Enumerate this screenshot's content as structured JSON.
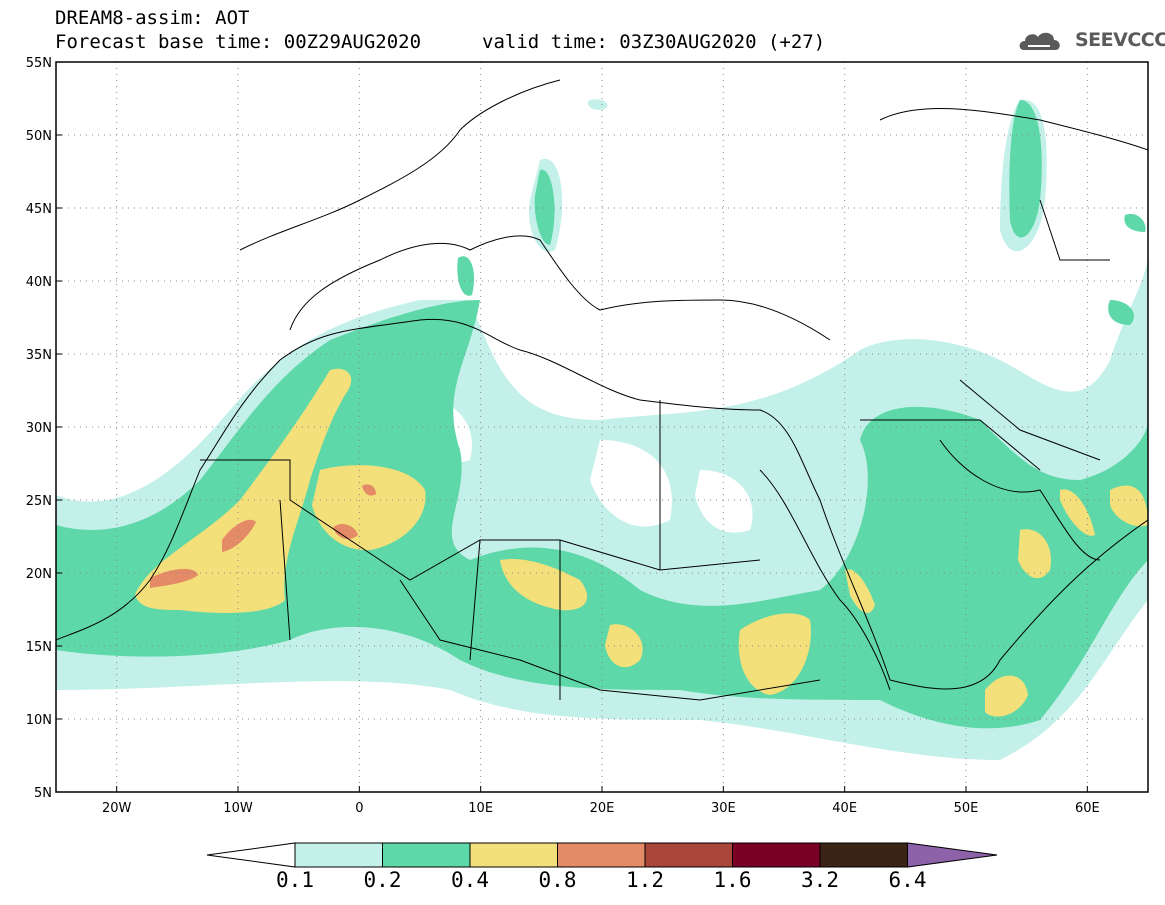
{
  "header": {
    "model_title": "DREAM8-assim: AOT",
    "base_time": "Forecast base time: 00Z29AUG2020",
    "valid_time": "valid time: 03Z30AUG2020 (+27)"
  },
  "logo": {
    "text": "SEEVCCC",
    "icon": "cloud-icon"
  },
  "map": {
    "region": "North Africa / Middle East",
    "lon_range": [
      -25,
      65
    ],
    "lat_range": [
      5,
      55
    ],
    "lat_labels": [
      "55N",
      "50N",
      "45N",
      "40N",
      "35N",
      "30N",
      "25N",
      "20N",
      "15N",
      "10N",
      "5N"
    ],
    "lat_values": [
      55,
      50,
      45,
      40,
      35,
      30,
      25,
      20,
      15,
      10,
      5
    ],
    "lon_labels": [
      "20W",
      "10W",
      "0",
      "10E",
      "20E",
      "30E",
      "40E",
      "50E",
      "60E"
    ],
    "lon_values": [
      -20,
      -10,
      0,
      10,
      20,
      30,
      40,
      50,
      60
    ],
    "grid": "dotted"
  },
  "legend": {
    "labels": [
      "0.1",
      "0.2",
      "0.4",
      "0.8",
      "1.2",
      "1.6",
      "3.2",
      "6.4"
    ],
    "colors": [
      "#ffffff",
      "#c4f0ea",
      "#5ed8a8",
      "#f3e07a",
      "#e58a66",
      "#a8463a",
      "#7a0025",
      "#3b2415",
      "#8d62a8"
    ]
  }
}
